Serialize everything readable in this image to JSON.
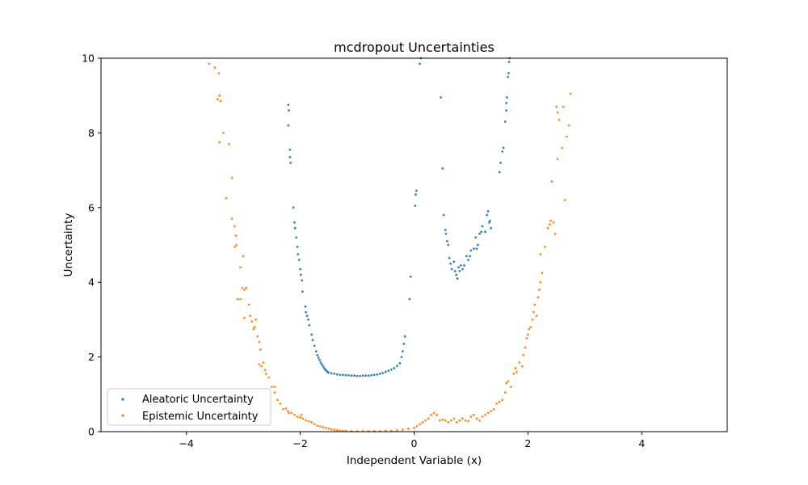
{
  "chart_data": {
    "type": "scatter",
    "title": "mcdropout Uncertainties",
    "xlabel": "Independent Variable (x)",
    "ylabel": "Uncertainty",
    "xlim": [
      -5.5,
      5.5
    ],
    "ylim": [
      0,
      10
    ],
    "xticks": [
      -4,
      -2,
      0,
      2,
      4
    ],
    "yticks": [
      0,
      2,
      4,
      6,
      8,
      10
    ],
    "xtick_labels": [
      "−4",
      "−2",
      "0",
      "2",
      "4"
    ],
    "ytick_labels": [
      "0",
      "2",
      "4",
      "6",
      "8",
      "10"
    ],
    "grid": false,
    "legend_position": "lower-left",
    "series": [
      {
        "name": "Aleatoric Uncertainty",
        "color": "#1f77b4",
        "points": [
          [
            -2.21,
            8.75
          ],
          [
            -2.2,
            8.6
          ],
          [
            -2.21,
            8.2
          ],
          [
            -2.18,
            7.55
          ],
          [
            -2.18,
            7.35
          ],
          [
            -2.17,
            7.2
          ],
          [
            -2.12,
            6.0
          ],
          [
            -2.1,
            5.6
          ],
          [
            -2.09,
            5.45
          ],
          [
            -2.07,
            5.2
          ],
          [
            -2.05,
            4.95
          ],
          [
            -2.04,
            4.75
          ],
          [
            -2.02,
            4.6
          ],
          [
            -2.0,
            4.35
          ],
          [
            -1.99,
            4.2
          ],
          [
            -1.97,
            4.05
          ],
          [
            -1.96,
            3.75
          ],
          [
            -1.91,
            3.35
          ],
          [
            -1.9,
            3.2
          ],
          [
            -1.88,
            3.1
          ],
          [
            -1.86,
            3.0
          ],
          [
            -1.84,
            2.85
          ],
          [
            -1.8,
            2.6
          ],
          [
            -1.78,
            2.45
          ],
          [
            -1.75,
            2.3
          ],
          [
            -1.72,
            2.15
          ],
          [
            -1.7,
            2.05
          ],
          [
            -1.68,
            1.98
          ],
          [
            -1.66,
            1.92
          ],
          [
            -1.64,
            1.85
          ],
          [
            -1.62,
            1.8
          ],
          [
            -1.6,
            1.75
          ],
          [
            -1.58,
            1.7
          ],
          [
            -1.56,
            1.66
          ],
          [
            -1.54,
            1.63
          ],
          [
            -1.52,
            1.6
          ],
          [
            -1.5,
            1.58
          ],
          [
            -1.45,
            1.56
          ],
          [
            -1.4,
            1.55
          ],
          [
            -1.35,
            1.53
          ],
          [
            -1.3,
            1.52
          ],
          [
            -1.25,
            1.52
          ],
          [
            -1.2,
            1.51
          ],
          [
            -1.15,
            1.51
          ],
          [
            -1.1,
            1.5
          ],
          [
            -1.05,
            1.5
          ],
          [
            -1.0,
            1.49
          ],
          [
            -0.95,
            1.49
          ],
          [
            -0.9,
            1.5
          ],
          [
            -0.85,
            1.5
          ],
          [
            -0.8,
            1.5
          ],
          [
            -0.75,
            1.51
          ],
          [
            -0.7,
            1.52
          ],
          [
            -0.65,
            1.53
          ],
          [
            -0.6,
            1.55
          ],
          [
            -0.55,
            1.57
          ],
          [
            -0.5,
            1.6
          ],
          [
            -0.45,
            1.63
          ],
          [
            -0.4,
            1.66
          ],
          [
            -0.35,
            1.7
          ],
          [
            -0.3,
            1.76
          ],
          [
            -0.25,
            1.83
          ],
          [
            -0.22,
            2.0
          ],
          [
            -0.2,
            2.15
          ],
          [
            -0.18,
            2.35
          ],
          [
            -0.16,
            2.55
          ],
          [
            -0.08,
            3.55
          ],
          [
            -0.06,
            4.15
          ],
          [
            0.02,
            6.05
          ],
          [
            0.03,
            6.35
          ],
          [
            0.04,
            6.45
          ],
          [
            0.1,
            9.85
          ],
          [
            0.12,
            10.0
          ],
          [
            0.47,
            8.95
          ],
          [
            0.5,
            7.05
          ],
          [
            0.52,
            5.8
          ],
          [
            0.55,
            5.4
          ],
          [
            0.56,
            5.3
          ],
          [
            0.58,
            5.1
          ],
          [
            0.6,
            5.0
          ],
          [
            0.62,
            4.65
          ],
          [
            0.64,
            4.5
          ],
          [
            0.66,
            4.35
          ],
          [
            0.7,
            4.55
          ],
          [
            0.72,
            4.3
          ],
          [
            0.74,
            4.2
          ],
          [
            0.76,
            4.1
          ],
          [
            0.78,
            4.4
          ],
          [
            0.8,
            4.3
          ],
          [
            0.82,
            4.45
          ],
          [
            0.85,
            4.35
          ],
          [
            0.88,
            4.45
          ],
          [
            0.92,
            4.7
          ],
          [
            0.95,
            4.6
          ],
          [
            0.98,
            4.7
          ],
          [
            1.0,
            4.85
          ],
          [
            1.05,
            4.9
          ],
          [
            1.08,
            5.2
          ],
          [
            1.1,
            4.9
          ],
          [
            1.12,
            5.0
          ],
          [
            1.15,
            5.3
          ],
          [
            1.18,
            5.35
          ],
          [
            1.2,
            5.5
          ],
          [
            1.25,
            5.35
          ],
          [
            1.28,
            5.8
          ],
          [
            1.3,
            5.9
          ],
          [
            1.32,
            5.6
          ],
          [
            1.33,
            5.65
          ],
          [
            1.35,
            5.45
          ],
          [
            1.5,
            6.95
          ],
          [
            1.52,
            7.2
          ],
          [
            1.55,
            7.5
          ],
          [
            1.57,
            7.6
          ],
          [
            1.6,
            8.3
          ],
          [
            1.62,
            8.8
          ],
          [
            1.63,
            8.95
          ],
          [
            1.62,
            8.6
          ],
          [
            1.65,
            9.5
          ],
          [
            1.66,
            9.6
          ],
          [
            1.67,
            9.9
          ],
          [
            1.68,
            10.0
          ]
        ]
      },
      {
        "name": "Epistemic Uncertainty",
        "color": "#ff7f0e",
        "points": [
          [
            -3.6,
            9.85
          ],
          [
            -3.5,
            9.75
          ],
          [
            -3.43,
            9.6
          ],
          [
            -3.45,
            8.9
          ],
          [
            -3.42,
            9.0
          ],
          [
            -3.4,
            8.85
          ],
          [
            -3.42,
            7.75
          ],
          [
            -3.35,
            8.0
          ],
          [
            -3.25,
            7.7
          ],
          [
            -3.3,
            6.25
          ],
          [
            -3.2,
            6.8
          ],
          [
            -3.2,
            5.7
          ],
          [
            -3.15,
            5.5
          ],
          [
            -3.13,
            5.25
          ],
          [
            -3.12,
            5.0
          ],
          [
            -3.15,
            4.95
          ],
          [
            -3.05,
            4.4
          ],
          [
            -3.1,
            3.55
          ],
          [
            -3.05,
            3.55
          ],
          [
            -3.02,
            3.85
          ],
          [
            -3.0,
            4.7
          ],
          [
            -2.98,
            3.8
          ],
          [
            -2.95,
            3.85
          ],
          [
            -2.98,
            3.05
          ],
          [
            -2.9,
            3.4
          ],
          [
            -2.88,
            3.1
          ],
          [
            -2.85,
            2.95
          ],
          [
            -2.82,
            2.75
          ],
          [
            -2.8,
            2.8
          ],
          [
            -2.78,
            3.0
          ],
          [
            -2.75,
            2.55
          ],
          [
            -2.72,
            2.4
          ],
          [
            -2.7,
            2.2
          ],
          [
            -2.72,
            1.8
          ],
          [
            -2.68,
            1.75
          ],
          [
            -2.65,
            1.85
          ],
          [
            -2.62,
            1.65
          ],
          [
            -2.6,
            1.55
          ],
          [
            -2.55,
            1.45
          ],
          [
            -2.5,
            1.2
          ],
          [
            -2.45,
            1.2
          ],
          [
            -2.45,
            1.05
          ],
          [
            -2.4,
            0.85
          ],
          [
            -2.35,
            0.75
          ],
          [
            -2.3,
            0.6
          ],
          [
            -2.25,
            0.62
          ],
          [
            -2.22,
            0.55
          ],
          [
            -2.2,
            0.5
          ],
          [
            -2.15,
            0.5
          ],
          [
            -2.1,
            0.45
          ],
          [
            -2.05,
            0.4
          ],
          [
            -2.0,
            0.38
          ],
          [
            -1.98,
            0.45
          ],
          [
            -1.95,
            0.35
          ],
          [
            -1.9,
            0.3
          ],
          [
            -1.85,
            0.28
          ],
          [
            -1.8,
            0.25
          ],
          [
            -1.75,
            0.2
          ],
          [
            -1.7,
            0.16
          ],
          [
            -1.65,
            0.14
          ],
          [
            -1.6,
            0.12
          ],
          [
            -1.55,
            0.1
          ],
          [
            -1.5,
            0.08
          ],
          [
            -1.45,
            0.06
          ],
          [
            -1.4,
            0.05
          ],
          [
            -1.35,
            0.04
          ],
          [
            -1.3,
            0.03
          ],
          [
            -1.25,
            0.02
          ],
          [
            -1.2,
            0.02
          ],
          [
            -1.1,
            0.01
          ],
          [
            -1.0,
            0.01
          ],
          [
            -0.9,
            0.01
          ],
          [
            -0.8,
            0.01
          ],
          [
            -0.7,
            0.01
          ],
          [
            -0.6,
            0.01
          ],
          [
            -0.5,
            0.02
          ],
          [
            -0.4,
            0.02
          ],
          [
            -0.3,
            0.03
          ],
          [
            -0.2,
            0.05
          ],
          [
            -0.1,
            0.08
          ],
          [
            0.0,
            0.1
          ],
          [
            0.05,
            0.15
          ],
          [
            0.1,
            0.2
          ],
          [
            0.15,
            0.25
          ],
          [
            0.2,
            0.3
          ],
          [
            0.25,
            0.35
          ],
          [
            0.3,
            0.45
          ],
          [
            0.35,
            0.5
          ],
          [
            0.4,
            0.45
          ],
          [
            0.45,
            0.3
          ],
          [
            0.5,
            0.32
          ],
          [
            0.55,
            0.3
          ],
          [
            0.6,
            0.25
          ],
          [
            0.65,
            0.3
          ],
          [
            0.7,
            0.35
          ],
          [
            0.75,
            0.25
          ],
          [
            0.8,
            0.3
          ],
          [
            0.85,
            0.35
          ],
          [
            0.9,
            0.3
          ],
          [
            0.95,
            0.28
          ],
          [
            1.0,
            0.4
          ],
          [
            1.05,
            0.45
          ],
          [
            1.1,
            0.35
          ],
          [
            1.15,
            0.3
          ],
          [
            1.2,
            0.4
          ],
          [
            1.25,
            0.45
          ],
          [
            1.3,
            0.5
          ],
          [
            1.35,
            0.55
          ],
          [
            1.4,
            0.6
          ],
          [
            1.45,
            0.75
          ],
          [
            1.5,
            0.8
          ],
          [
            1.55,
            0.85
          ],
          [
            1.6,
            1.05
          ],
          [
            1.62,
            1.3
          ],
          [
            1.65,
            1.35
          ],
          [
            1.7,
            1.2
          ],
          [
            1.75,
            1.55
          ],
          [
            1.78,
            1.7
          ],
          [
            1.8,
            1.6
          ],
          [
            1.85,
            1.85
          ],
          [
            1.9,
            1.75
          ],
          [
            1.92,
            2.05
          ],
          [
            1.95,
            2.25
          ],
          [
            1.98,
            2.5
          ],
          [
            2.0,
            2.6
          ],
          [
            2.02,
            2.75
          ],
          [
            2.05,
            2.8
          ],
          [
            2.08,
            3.0
          ],
          [
            2.1,
            3.2
          ],
          [
            2.12,
            3.4
          ],
          [
            2.15,
            3.1
          ],
          [
            2.18,
            3.6
          ],
          [
            2.2,
            3.8
          ],
          [
            2.22,
            4.0
          ],
          [
            2.25,
            4.25
          ],
          [
            2.22,
            4.75
          ],
          [
            2.3,
            4.95
          ],
          [
            2.35,
            5.45
          ],
          [
            2.38,
            5.55
          ],
          [
            2.4,
            5.65
          ],
          [
            2.45,
            5.6
          ],
          [
            2.48,
            5.3
          ],
          [
            2.42,
            6.7
          ],
          [
            2.5,
            8.7
          ],
          [
            2.52,
            8.55
          ],
          [
            2.55,
            8.35
          ],
          [
            2.52,
            7.3
          ],
          [
            2.6,
            7.6
          ],
          [
            2.62,
            8.7
          ],
          [
            2.65,
            6.2
          ],
          [
            2.68,
            7.9
          ],
          [
            2.72,
            8.2
          ],
          [
            2.75,
            9.05
          ]
        ]
      }
    ]
  }
}
